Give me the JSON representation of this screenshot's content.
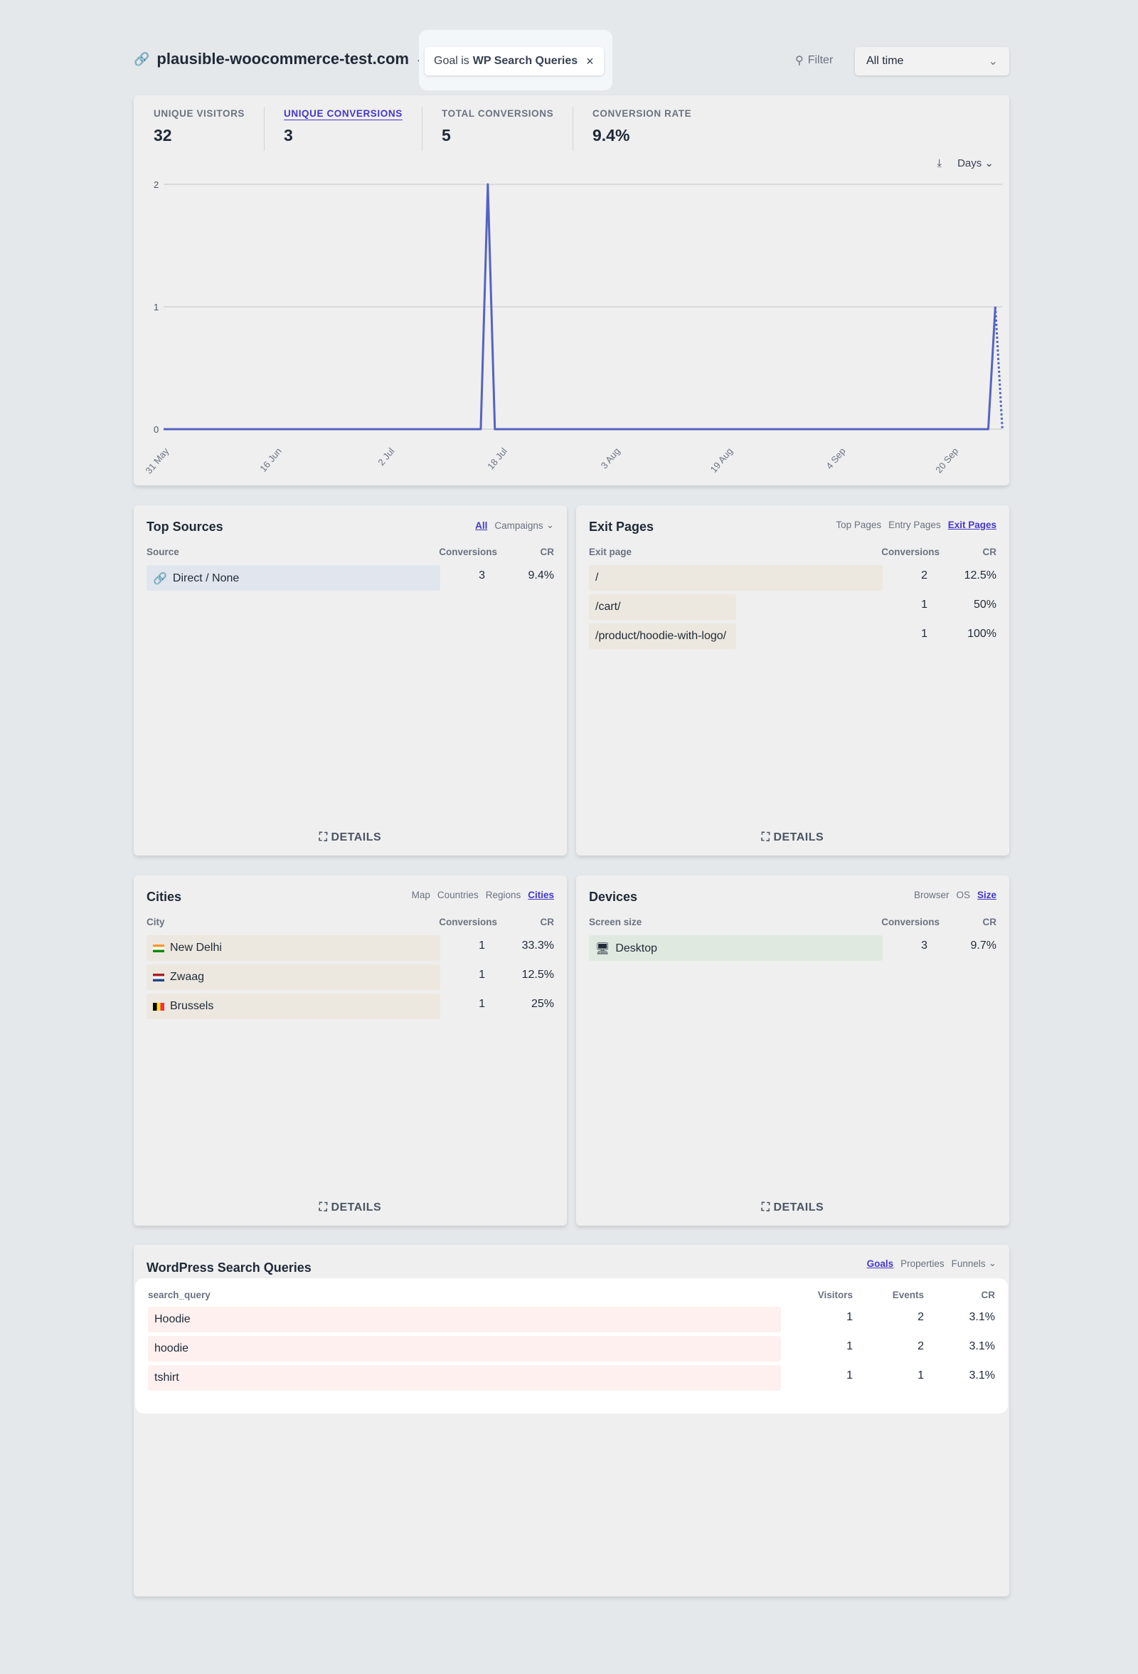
{
  "header": {
    "site": "plausible-woocommerce-test.com",
    "filter_prefix": "Goal is",
    "filter_value": "WP Search Queries",
    "filter_label": "Filter",
    "period": "All time"
  },
  "stats": [
    {
      "label": "UNIQUE VISITORS",
      "value": "32"
    },
    {
      "label": "UNIQUE CONVERSIONS",
      "value": "3",
      "active": true
    },
    {
      "label": "TOTAL CONVERSIONS",
      "value": "5"
    },
    {
      "label": "CONVERSION RATE",
      "value": "9.4%"
    }
  ],
  "chart_controls": {
    "interval": "Days"
  },
  "chart_data": {
    "type": "line",
    "metric": "Unique conversions",
    "ylim": [
      0,
      2
    ],
    "y_ticks": [
      "0",
      "1",
      "2"
    ],
    "x_ticks": [
      "31 May",
      "16 Jun",
      "2 Jul",
      "18 Jul",
      "3 Aug",
      "19 Aug",
      "4 Sep",
      "20 Sep"
    ],
    "grid": true,
    "color": "#5563c1",
    "points": [
      {
        "x": "31 May",
        "y": 0
      },
      {
        "x": "15 Jul",
        "y": 0
      },
      {
        "x": "16 Jul",
        "y": 2
      },
      {
        "x": "17 Jul",
        "y": 0
      },
      {
        "x": "25 Sep",
        "y": 0
      },
      {
        "x": "26 Sep",
        "y": 1
      },
      {
        "x": "27 Sep",
        "y": 0,
        "incomplete": true
      }
    ]
  },
  "top_sources": {
    "title": "Top Sources",
    "tabs": [
      "All",
      "Campaigns"
    ],
    "active_tab": "All",
    "columns": [
      "Source",
      "Conversions",
      "CR"
    ],
    "rows": [
      {
        "name": "Direct / None",
        "conversions": "3",
        "cr": "9.4%",
        "fill": 1
      }
    ],
    "details": "DETAILS",
    "bar_color": "#e1e6ee"
  },
  "exit_pages": {
    "title": "Exit Pages",
    "tabs": [
      "Top Pages",
      "Entry Pages",
      "Exit Pages"
    ],
    "active_tab": "Exit Pages",
    "columns": [
      "Exit page",
      "Conversions",
      "CR"
    ],
    "rows": [
      {
        "name": "/",
        "conversions": "2",
        "cr": "12.5%",
        "fill": 1
      },
      {
        "name": "/cart/",
        "conversions": "1",
        "cr": "50%",
        "fill": 0.5
      },
      {
        "name": "/product/hoodie-with-logo/",
        "conversions": "1",
        "cr": "100%",
        "fill": 0.5
      }
    ],
    "details": "DETAILS",
    "bar_color": "#ece8df"
  },
  "cities": {
    "title": "Cities",
    "tabs": [
      "Map",
      "Countries",
      "Regions",
      "Cities"
    ],
    "active_tab": "Cities",
    "columns": [
      "City",
      "Conversions",
      "CR"
    ],
    "rows": [
      {
        "name": "New Delhi",
        "flag": "india-flag",
        "conversions": "1",
        "cr": "33.3%",
        "fill": 1
      },
      {
        "name": "Zwaag",
        "flag": "netherlands-flag",
        "conversions": "1",
        "cr": "12.5%",
        "fill": 1
      },
      {
        "name": "Brussels",
        "flag": "belgium-flag",
        "conversions": "1",
        "cr": "25%",
        "fill": 1
      }
    ],
    "details": "DETAILS",
    "bar_color": "#ece8df"
  },
  "devices": {
    "title": "Devices",
    "tabs": [
      "Browser",
      "OS",
      "Size"
    ],
    "active_tab": "Size",
    "columns": [
      "Screen size",
      "Conversions",
      "CR"
    ],
    "rows": [
      {
        "name": "Desktop",
        "conversions": "3",
        "cr": "9.7%",
        "fill": 1
      }
    ],
    "details": "DETAILS",
    "bar_color": "#dfe9e0"
  },
  "wp_search": {
    "title": "WordPress Search Queries",
    "tabs": [
      "Goals",
      "Properties",
      "Funnels"
    ],
    "active_tab": "Goals",
    "columns": [
      "search_query",
      "Visitors",
      "Events",
      "CR"
    ],
    "rows": [
      {
        "name": "Hoodie",
        "visitors": "1",
        "events": "2",
        "cr": "3.1%"
      },
      {
        "name": "hoodie",
        "visitors": "1",
        "events": "2",
        "cr": "3.1%"
      },
      {
        "name": "tshirt",
        "visitors": "1",
        "events": "1",
        "cr": "3.1%"
      }
    ],
    "bar_color": "#fdf0ef"
  }
}
